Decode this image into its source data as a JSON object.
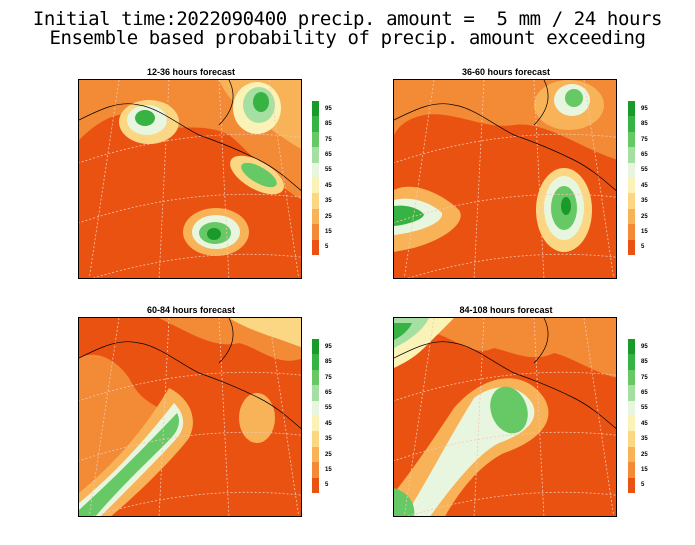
{
  "header": {
    "title_line1": "Initial time:2022090400 precip. amount =  5 mm / 24 hours",
    "title_line2": "Ensemble based probability of precip. amount exceeding"
  },
  "panels": [
    {
      "title": "12-36 hours forecast"
    },
    {
      "title": "36-60 hours forecast"
    },
    {
      "title": "60-84 hours forecast"
    },
    {
      "title": "84-108 hours forecast"
    }
  ],
  "colorbar": {
    "labels": [
      "95",
      "85",
      "75",
      "65",
      "55",
      "45",
      "35",
      "25",
      "15",
      "5"
    ],
    "colors": [
      "#1a9a2a",
      "#37b343",
      "#67c866",
      "#a6dfa2",
      "#e9f6df",
      "#fbf2b8",
      "#fbd784",
      "#f8b258",
      "#f28a36",
      "#ea5212"
    ]
  },
  "colors": {
    "background": "#ea5212",
    "grid": "#f4c7b0",
    "coast": "#000000"
  }
}
